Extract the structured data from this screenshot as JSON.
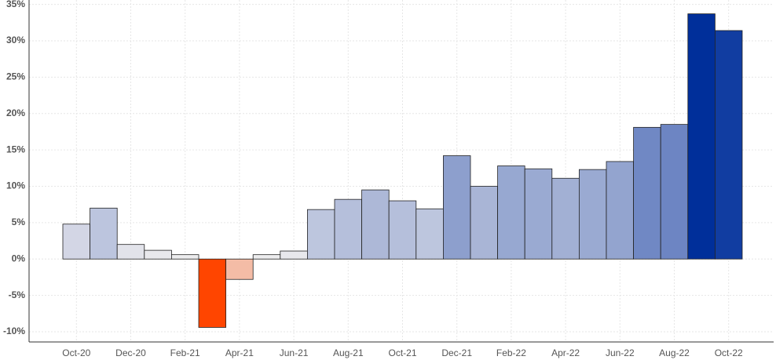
{
  "chart_data": {
    "type": "bar",
    "categories": [
      "Oct-20",
      null,
      "Dec-20",
      null,
      "Feb-21",
      null,
      "Apr-21",
      null,
      "Jun-21",
      null,
      "Aug-21",
      null,
      "Oct-21",
      null,
      "Dec-21",
      null,
      "Feb-22",
      null,
      "Apr-22",
      null,
      "Jun-22",
      null,
      "Aug-22",
      null,
      "Oct-22"
    ],
    "values": [
      4.8,
      7.0,
      2.0,
      1.2,
      0.6,
      -9.4,
      -2.8,
      0.6,
      1.1,
      6.8,
      8.2,
      9.5,
      8.0,
      6.9,
      14.2,
      10.0,
      12.8,
      12.4,
      11.1,
      12.3,
      13.4,
      18.1,
      18.5,
      33.7,
      31.4
    ],
    "colors": [
      "#d3d6e5",
      "#bcc5de",
      "#e2e3ea",
      "#e8e8ec",
      "#ececee",
      "#ff4500",
      "#f4bca6",
      "#ececee",
      "#e8e8ec",
      "#bdc6de",
      "#b5bfdb",
      "#adb8d7",
      "#b5bfdb",
      "#bdc6de",
      "#8d9fcd",
      "#a9b5d6",
      "#97a8d1",
      "#9aaad2",
      "#a2b0d4",
      "#9aaad2",
      "#93a4cf",
      "#7088c4",
      "#6d85c3",
      "#002f9a",
      "#113da1"
    ],
    "ylim": [
      -11.4,
      35.6
    ],
    "yticks": [
      {
        "value": -10,
        "label": "-10%"
      },
      {
        "value": -5,
        "label": "-5%"
      },
      {
        "value": 0,
        "label": "0%"
      },
      {
        "value": 5,
        "label": "5%"
      },
      {
        "value": 10,
        "label": "10%"
      },
      {
        "value": 15,
        "label": "15%"
      },
      {
        "value": 20,
        "label": "20%"
      },
      {
        "value": 25,
        "label": "25%"
      },
      {
        "value": 30,
        "label": "30%"
      },
      {
        "value": 35,
        "label": "35%"
      }
    ],
    "grid": true
  }
}
